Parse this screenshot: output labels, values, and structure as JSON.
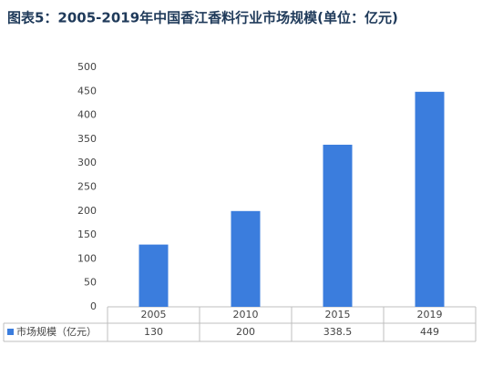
{
  "chart_data": {
    "type": "bar",
    "title": "图表5：2005-2019年中国香江香料行业市场规模(单位：亿元)",
    "categories": [
      "2005",
      "2010",
      "2015",
      "2019"
    ],
    "series": [
      {
        "name": "市场规模（亿元）",
        "color": "#3b7ddd",
        "values": [
          130,
          200,
          338.5,
          449
        ]
      }
    ],
    "ylim": [
      0,
      500
    ],
    "yticks": [
      0,
      50,
      100,
      150,
      200,
      250,
      300,
      350,
      400,
      450,
      500
    ],
    "grid": false,
    "data_table": true
  }
}
